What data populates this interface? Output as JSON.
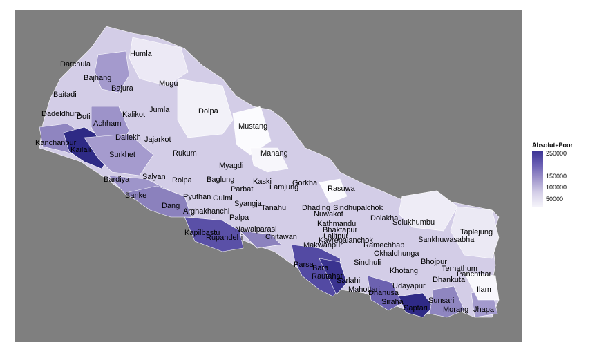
{
  "legend": {
    "title": "AbsolutePoor",
    "ticks": [
      "250000",
      "150000",
      "100000",
      "50000"
    ],
    "colors": {
      "high": "#3b3394",
      "low": "#f6f5fb"
    }
  },
  "background": "#7f7f7f",
  "districts": [
    "Humla",
    "Darchula",
    "Bajhang",
    "Mugu",
    "Bajura",
    "Baitadi",
    "Jumla",
    "Dolpa",
    "Dadeldhura",
    "Doti",
    "Kalikot",
    "Achham",
    "Mustang",
    "Dailekh",
    "Jajarkot",
    "Kanchanpur",
    "Kailali",
    "Surkhet",
    "Manang",
    "Rukum",
    "Myagdi",
    "Bardiya",
    "Salyan",
    "Rolpa",
    "Baglung",
    "Kaski",
    "Gorkha",
    "Parbat",
    "Lamjung",
    "Rasuwa",
    "Banke",
    "Pyuthan",
    "Gulmi",
    "Syangja",
    "Dang",
    "Tanahu",
    "Dhading",
    "Sindhupalchok",
    "Arghakhanchi",
    "Nuwakot",
    "Dolakha",
    "Solukhumbu",
    "Palpa",
    "Kathmandu",
    "Bhaktapur",
    "Taplejung",
    "Lalitpur",
    "Kapilbastu",
    "Nawalparasi",
    "Rupandehi",
    "Kavrepalanchok",
    "Chitawan",
    "Sankhuwasabha",
    "Makwanpur",
    "Ramechhap",
    "Okhaldhunga",
    "Sindhuli",
    "Parsa",
    "Bhojpur",
    "Bara",
    "Khotang",
    "Terhathum",
    "Rautahat",
    "Panchthar",
    "Sarlahi",
    "Dhankuta",
    "Mahottari",
    "Udayapur",
    "Dhanusa",
    "Ilam",
    "Sunsari",
    "Siraha",
    "Saptari",
    "Morang",
    "Jhapa"
  ]
}
